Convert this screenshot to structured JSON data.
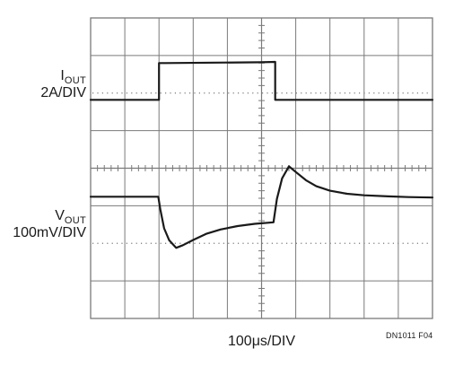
{
  "labels": {
    "iout_main": "I",
    "iout_sub": "OUT",
    "iout_scale": "2A/DIV",
    "vout_main": "V",
    "vout_sub": "OUT",
    "vout_scale": "100mV/DIV",
    "time_scale": "100μs/DIV",
    "figure_id": "DN1011 F04"
  },
  "chart_data": {
    "type": "line",
    "title": "",
    "xlabel": "100μs/DIV",
    "grid": true,
    "grid_divisions": {
      "x": 10,
      "y": 8
    },
    "x_unit": "div",
    "y_unit": "div",
    "xlim": [
      0,
      10
    ],
    "ylim": [
      0,
      8
    ],
    "trace_color": "#1a1a1a",
    "grid_color": "#7a7a7a",
    "series": [
      {
        "name": "IOUT",
        "scale": "2A/DIV",
        "x": [
          0,
          2.0,
          2.0,
          2.2,
          5.0,
          5.4,
          5.4,
          10
        ],
        "y": [
          5.82,
          5.82,
          6.8,
          6.8,
          6.82,
          6.83,
          5.82,
          5.82
        ]
      },
      {
        "name": "VOUT",
        "scale": "100mV/DIV",
        "x": [
          0,
          1.98,
          2.04,
          2.15,
          2.3,
          2.5,
          2.7,
          3.0,
          3.4,
          3.8,
          4.3,
          4.8,
          5.35,
          5.45,
          5.6,
          5.8,
          6.0,
          6.3,
          6.6,
          7.0,
          7.5,
          8.0,
          8.7,
          9.3,
          10
        ],
        "y": [
          3.24,
          3.24,
          2.9,
          2.4,
          2.08,
          1.88,
          1.95,
          2.09,
          2.26,
          2.37,
          2.46,
          2.52,
          2.56,
          3.18,
          3.73,
          4.05,
          3.9,
          3.68,
          3.52,
          3.4,
          3.32,
          3.28,
          3.25,
          3.23,
          3.22
        ]
      }
    ],
    "reference_lines": [
      {
        "name": "IOUT dotted divider",
        "y": 6
      },
      {
        "name": "VOUT dotted divider",
        "y": 2
      }
    ]
  }
}
